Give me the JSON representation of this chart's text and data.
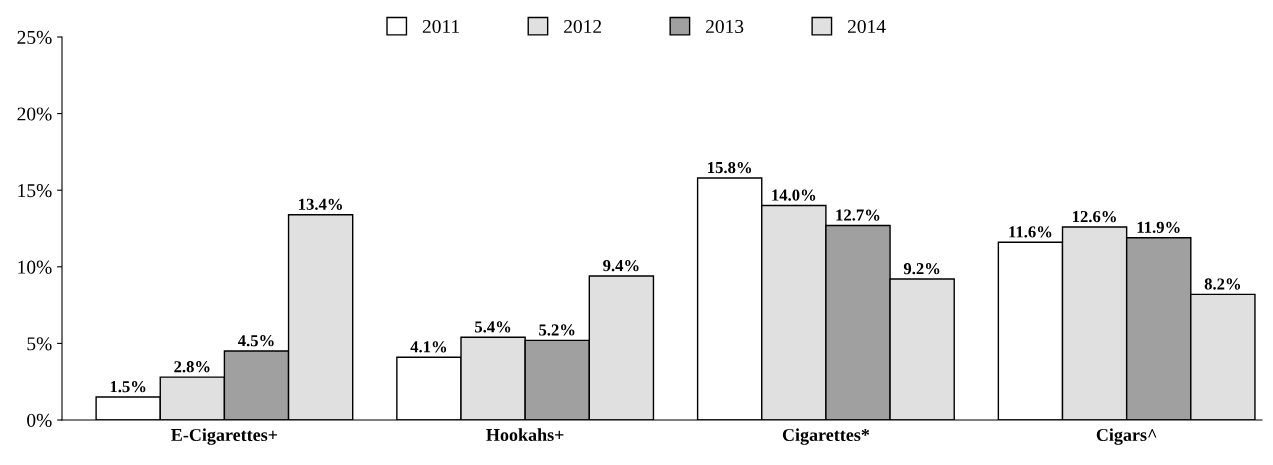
{
  "chart_data": {
    "type": "bar",
    "categories": [
      "E-Cigarettes+",
      "Hookahs+",
      "Cigarettes*",
      "Cigars^"
    ],
    "series": [
      {
        "name": "2011",
        "color": "#ffffff",
        "values": [
          1.5,
          4.1,
          15.8,
          11.6
        ],
        "value_labels": [
          "1.5%",
          "4.1%",
          "15.8%",
          "11.6%"
        ]
      },
      {
        "name": "2012",
        "color": "#e0e0e0",
        "values": [
          2.8,
          5.4,
          14.0,
          12.6
        ],
        "value_labels": [
          "2.8%",
          "5.4%",
          "14.0%",
          "12.6%"
        ]
      },
      {
        "name": "2013",
        "color": "#a0a0a0",
        "values": [
          4.5,
          5.2,
          12.7,
          11.9
        ],
        "value_labels": [
          "4.5%",
          "5.2%",
          "12.7%",
          "11.9%"
        ]
      },
      {
        "name": "2014",
        "color": "#e0e0e0",
        "values": [
          13.4,
          9.4,
          9.2,
          8.2
        ],
        "value_labels": [
          "13.4%",
          "9.4%",
          "9.2%",
          "8.2%"
        ]
      }
    ],
    "ylim": [
      0,
      25
    ],
    "yticks": [
      {
        "value": 0,
        "label": "0%"
      },
      {
        "value": 5,
        "label": "5%"
      },
      {
        "value": 10,
        "label": "10%"
      },
      {
        "value": 15,
        "label": "15%"
      },
      {
        "value": 20,
        "label": "20%"
      },
      {
        "value": 25,
        "label": "25%"
      }
    ],
    "grid": false,
    "legend": "top"
  }
}
